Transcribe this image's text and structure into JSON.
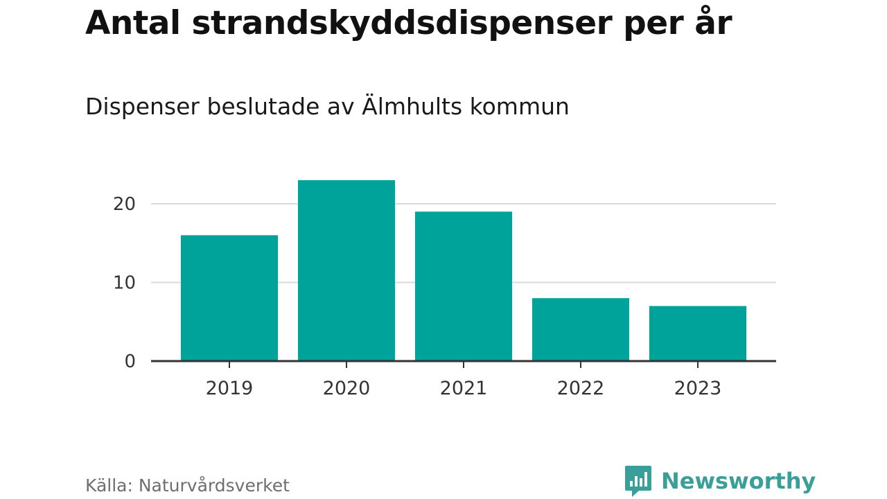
{
  "title": "Antal strandskyddsdispenser per år",
  "subtitle": "Dispenser beslutade av Älmhults kommun",
  "source": "Källa: Naturvårdsverket",
  "brand": {
    "name": "Newsworthy",
    "icon": "newsworthy-logo-icon",
    "color": "#3a9f98"
  },
  "colors": {
    "bar": "#00a39a",
    "grid": "#d9d9d9",
    "axis": "#333333",
    "tick_text": "#333333"
  },
  "chart_data": {
    "type": "bar",
    "title": "Antal strandskyddsdispenser per år",
    "subtitle": "Dispenser beslutade av Älmhults kommun",
    "xlabel": "",
    "ylabel": "",
    "categories": [
      "2019",
      "2020",
      "2021",
      "2022",
      "2023"
    ],
    "values": [
      16,
      23,
      19,
      8,
      7
    ],
    "ylim": [
      0,
      25
    ],
    "yticks": [
      0,
      10,
      20
    ],
    "grid": true,
    "legend": "none"
  }
}
